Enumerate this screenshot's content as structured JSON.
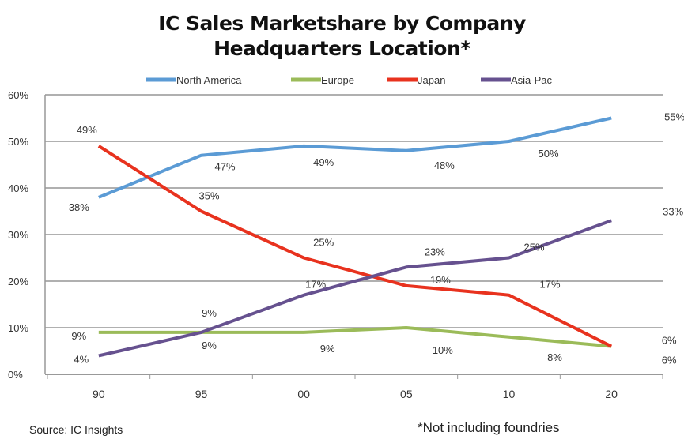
{
  "chart_data": {
    "type": "line",
    "title_line1": "IC Sales Marketshare by Company",
    "title_line2": "Headquarters Location*",
    "categories": [
      "90",
      "95",
      "00",
      "05",
      "10",
      "20"
    ],
    "ylim": [
      0,
      60
    ],
    "yticks": [
      "0%",
      "10%",
      "20%",
      "30%",
      "40%",
      "50%",
      "60%"
    ],
    "grid": true,
    "legend_position": "top",
    "series": [
      {
        "name": "North America",
        "color": "#5b9bd5",
        "values": [
          38,
          47,
          49,
          48,
          50,
          55
        ],
        "labels": [
          "38%",
          "47%",
          "49%",
          "48%",
          "50%",
          "55%"
        ]
      },
      {
        "name": "Europe",
        "color": "#9bbb59",
        "values": [
          9,
          9,
          9,
          10,
          8,
          6
        ],
        "labels": [
          "9%",
          "9%",
          "9%",
          "10%",
          "8%",
          "6%"
        ]
      },
      {
        "name": "Japan",
        "color": "#e8321e",
        "values": [
          49,
          35,
          25,
          19,
          17,
          6
        ],
        "labels": [
          "49%",
          "35%",
          "25%",
          "19%",
          "17%",
          "6%"
        ]
      },
      {
        "name": "Asia-Pac",
        "color": "#66518f",
        "values": [
          4,
          9,
          17,
          23,
          25,
          33
        ],
        "labels": [
          "4%",
          "9%",
          "17%",
          "23%",
          "25%",
          "33%"
        ]
      }
    ],
    "source": "Source:  IC Insights",
    "footnote": "*Not including foundries"
  }
}
